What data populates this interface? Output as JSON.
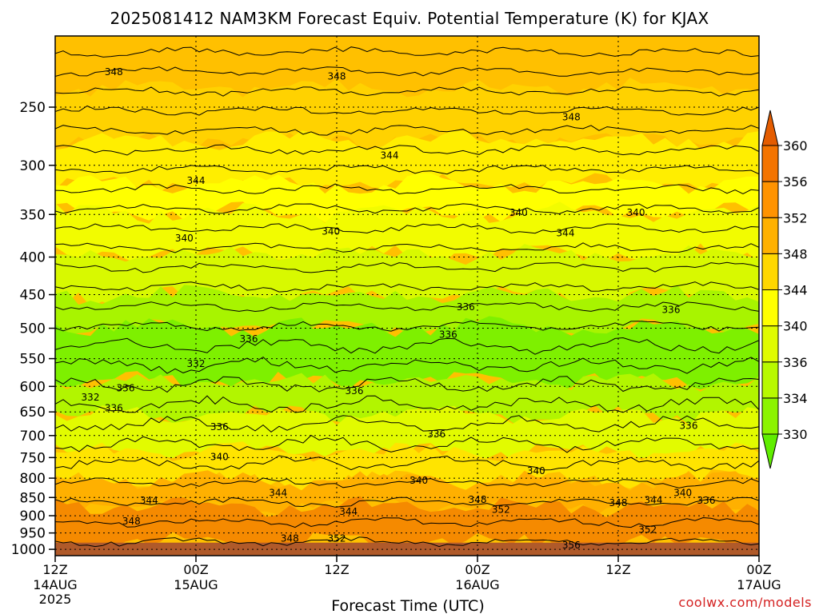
{
  "chart_data": {
    "type": "heatmap",
    "title": "2025081412 NAM3KM Forecast Equiv. Potential Temperature (K) for KJAX",
    "xlabel": "Forecast Time (UTC)",
    "ylabel": "",
    "x_ticks": [
      {
        "hour": 0,
        "label": "12Z",
        "date": "14AUG",
        "year": "2025"
      },
      {
        "hour": 12,
        "label": "00Z",
        "date": "15AUG",
        "year": ""
      },
      {
        "hour": 24,
        "label": "12Z",
        "date": "",
        "year": ""
      },
      {
        "hour": 36,
        "label": "00Z",
        "date": "16AUG",
        "year": ""
      },
      {
        "hour": 48,
        "label": "12Z",
        "date": "",
        "year": ""
      },
      {
        "hour": 60,
        "label": "00Z",
        "date": "17AUG",
        "year": ""
      }
    ],
    "xlim": [
      0,
      60
    ],
    "y_ticks": [
      250,
      300,
      350,
      400,
      450,
      500,
      550,
      600,
      650,
      700,
      750,
      800,
      850,
      900,
      950,
      1000
    ],
    "ylim": [
      1020,
      200
    ],
    "y_scale": "log (pressure, hPa)",
    "colorbar": {
      "levels": [
        330,
        334,
        336,
        340,
        344,
        348,
        352,
        356,
        360
      ],
      "colors": [
        "#60ee00",
        "#8cf400",
        "#b8f900",
        "#e0fb00",
        "#ffff00",
        "#ffd700",
        "#ffb100",
        "#ff9300",
        "#f47400",
        "#e45c00"
      ]
    },
    "contour_labels": [
      {
        "text": "348",
        "hour": 5.0,
        "p": 224
      },
      {
        "text": "348",
        "hour": 24.0,
        "p": 227
      },
      {
        "text": "348",
        "hour": 44.0,
        "p": 258
      },
      {
        "text": "344",
        "hour": 28.5,
        "p": 291
      },
      {
        "text": "344",
        "hour": 12.0,
        "p": 315
      },
      {
        "text": "340",
        "hour": 11.0,
        "p": 377
      },
      {
        "text": "340",
        "hour": 23.5,
        "p": 369
      },
      {
        "text": "340",
        "hour": 39.5,
        "p": 348
      },
      {
        "text": "344",
        "hour": 43.5,
        "p": 371
      },
      {
        "text": "340",
        "hour": 49.5,
        "p": 348
      },
      {
        "text": "336",
        "hour": 35.0,
        "p": 468
      },
      {
        "text": "336",
        "hour": 52.5,
        "p": 472
      },
      {
        "text": "336",
        "hour": 16.5,
        "p": 517
      },
      {
        "text": "336",
        "hour": 33.5,
        "p": 510
      },
      {
        "text": "332",
        "hour": 12.0,
        "p": 559
      },
      {
        "text": "336",
        "hour": 6.0,
        "p": 603
      },
      {
        "text": "332",
        "hour": 3.0,
        "p": 621
      },
      {
        "text": "336",
        "hour": 5.0,
        "p": 642
      },
      {
        "text": "336",
        "hour": 25.5,
        "p": 609
      },
      {
        "text": "336",
        "hour": 14.0,
        "p": 681
      },
      {
        "text": "336",
        "hour": 32.5,
        "p": 697
      },
      {
        "text": "336",
        "hour": 54.0,
        "p": 679
      },
      {
        "text": "340",
        "hour": 14.0,
        "p": 748
      },
      {
        "text": "340",
        "hour": 41.0,
        "p": 782
      },
      {
        "text": "340",
        "hour": 31.0,
        "p": 806
      },
      {
        "text": "340",
        "hour": 53.5,
        "p": 838
      },
      {
        "text": "344",
        "hour": 19.0,
        "p": 838
      },
      {
        "text": "344",
        "hour": 8.0,
        "p": 858
      },
      {
        "text": "344",
        "hour": 51.0,
        "p": 857
      },
      {
        "text": "336",
        "hour": 55.5,
        "p": 858
      },
      {
        "text": "348",
        "hour": 36.0,
        "p": 856
      },
      {
        "text": "348",
        "hour": 48.0,
        "p": 865
      },
      {
        "text": "352",
        "hour": 38.0,
        "p": 883
      },
      {
        "text": "344",
        "hour": 25.0,
        "p": 889
      },
      {
        "text": "348",
        "hour": 6.5,
        "p": 916
      },
      {
        "text": "348",
        "hour": 20.0,
        "p": 967
      },
      {
        "text": "352",
        "hour": 24.0,
        "p": 967
      },
      {
        "text": "352",
        "hour": 50.5,
        "p": 940
      },
      {
        "text": "356",
        "hour": 44.0,
        "p": 987
      }
    ]
  },
  "credit": "coolwx.com/models"
}
